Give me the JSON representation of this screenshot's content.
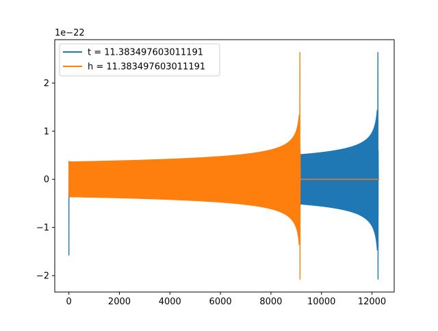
{
  "chart_data": {
    "type": "line",
    "title": "",
    "xlabel": "",
    "ylabel": "",
    "y_offset_label": "1e−22",
    "xlim": [
      -560,
      12880
    ],
    "ylim": [
      -2.34,
      2.9
    ],
    "x_ticks": [
      0,
      2000,
      4000,
      6000,
      8000,
      10000,
      12000
    ],
    "x_tick_labels": [
      "0",
      "2000",
      "4000",
      "6000",
      "8000",
      "10000",
      "12000"
    ],
    "y_ticks": [
      -2,
      -1,
      0,
      1,
      2
    ],
    "y_tick_labels": [
      "−2",
      "−1",
      "0",
      "1",
      "2"
    ],
    "grid": false,
    "legend_position": "upper-left",
    "series": [
      {
        "name": "t = 11.383497603011191",
        "color": "#1f77b4",
        "x_range": [
          0,
          12288
        ],
        "leading_spike_x": 0,
        "leading_spike": [
          -1.58,
          0.38
        ],
        "envelope_start": 0.37,
        "envelope_at_9200": 0.48,
        "chirp_peak_x": 12240,
        "chirp_peak": [
          -2.08,
          2.64
        ],
        "tail_value": 0.0
      },
      {
        "name": "h = 11.383497603011191",
        "color": "#ff7f0e",
        "x_range": [
          0,
          12288
        ],
        "leading_spike_x": 0,
        "leading_spike": [
          -0.3,
          0.38
        ],
        "envelope_start": 0.37,
        "chirp_peak_x": 9150,
        "chirp_peak": [
          -2.08,
          2.64
        ],
        "tail_value": 0.0
      }
    ]
  }
}
